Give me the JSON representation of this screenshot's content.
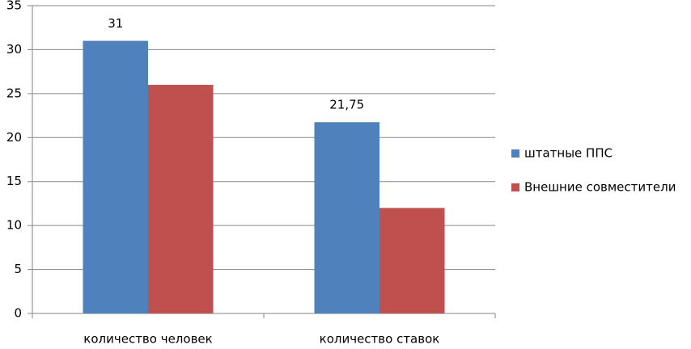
{
  "chart_data": {
    "type": "bar",
    "categories": [
      "количество человек",
      "количество ставок"
    ],
    "series": [
      {
        "name": "штатные ППС",
        "color": "#4f81bd",
        "values": [
          31,
          21.75
        ],
        "value_labels": [
          "31",
          "21,75"
        ]
      },
      {
        "name": "Внешние совместители",
        "color": "#c0504d",
        "values": [
          26,
          12
        ]
      }
    ],
    "ylim": [
      0,
      35
    ],
    "yticks": [
      0,
      5,
      10,
      15,
      20,
      25,
      30,
      35
    ],
    "grid": true,
    "legend": "right"
  }
}
